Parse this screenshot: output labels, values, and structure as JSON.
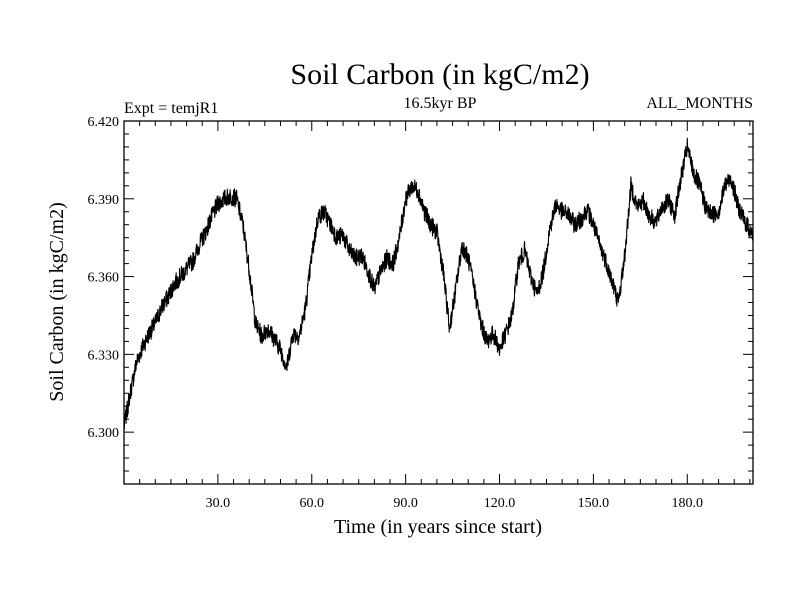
{
  "chart_data": {
    "type": "line",
    "title": "Soil Carbon (in kgC/m2)",
    "subtitle": "16.5kyr BP",
    "left_label": "Expt = temjR1",
    "right_label": "ALL_MONTHS",
    "xlabel": "Time (in years since start)",
    "ylabel": "Soil Carbon (in kgC/m2)",
    "xlim": [
      0,
      201
    ],
    "ylim": [
      6.28,
      6.42
    ],
    "x_ticks": [
      30,
      60,
      90,
      120,
      150,
      180
    ],
    "x_tick_labels": [
      "30.0",
      "60.0",
      "90.0",
      "120.0",
      "150.0",
      "180.0"
    ],
    "y_ticks": [
      6.3,
      6.33,
      6.36,
      6.39,
      6.42
    ],
    "y_tick_labels": [
      "6.300",
      "6.330",
      "6.360",
      "6.390",
      "6.420"
    ],
    "noise_amplitude": 0.0035,
    "series": [
      {
        "name": "Soil Carbon",
        "x": [
          0,
          2,
          4,
          6,
          8,
          10,
          12,
          14,
          16,
          18,
          20,
          22,
          24,
          26,
          28,
          30,
          32,
          34,
          36,
          38,
          40,
          42,
          44,
          46,
          48,
          50,
          52,
          54,
          56,
          58,
          60,
          62,
          64,
          66,
          68,
          70,
          72,
          74,
          76,
          78,
          80,
          82,
          84,
          86,
          88,
          90,
          92,
          94,
          96,
          98,
          100,
          102,
          104,
          106,
          108,
          110,
          112,
          114,
          116,
          118,
          120,
          122,
          124,
          126,
          128,
          130,
          132,
          134,
          136,
          138,
          140,
          142,
          144,
          146,
          148,
          150,
          152,
          154,
          156,
          158,
          160,
          162,
          164,
          166,
          168,
          170,
          172,
          174,
          176,
          178,
          180,
          182,
          184,
          186,
          188,
          190,
          192,
          194,
          196,
          198,
          200,
          201
        ],
        "values": [
          6.302,
          6.315,
          6.327,
          6.333,
          6.338,
          6.342,
          6.348,
          6.352,
          6.357,
          6.36,
          6.363,
          6.366,
          6.372,
          6.377,
          6.383,
          6.388,
          6.39,
          6.391,
          6.39,
          6.38,
          6.363,
          6.342,
          6.337,
          6.34,
          6.336,
          6.332,
          6.325,
          6.338,
          6.337,
          6.348,
          6.368,
          6.383,
          6.385,
          6.38,
          6.375,
          6.376,
          6.37,
          6.367,
          6.368,
          6.362,
          6.355,
          6.362,
          6.367,
          6.365,
          6.375,
          6.39,
          6.395,
          6.393,
          6.385,
          6.38,
          6.377,
          6.362,
          6.34,
          6.355,
          6.372,
          6.367,
          6.355,
          6.342,
          6.335,
          6.338,
          6.332,
          6.338,
          6.345,
          6.365,
          6.37,
          6.36,
          6.353,
          6.362,
          6.378,
          6.388,
          6.385,
          6.384,
          6.38,
          6.382,
          6.386,
          6.38,
          6.372,
          6.366,
          6.358,
          6.35,
          6.368,
          6.395,
          6.387,
          6.389,
          6.383,
          6.381,
          6.387,
          6.389,
          6.384,
          6.398,
          6.41,
          6.4,
          6.395,
          6.386,
          6.384,
          6.385,
          6.395,
          6.398,
          6.388,
          6.382,
          6.378,
          6.375
        ]
      }
    ]
  }
}
